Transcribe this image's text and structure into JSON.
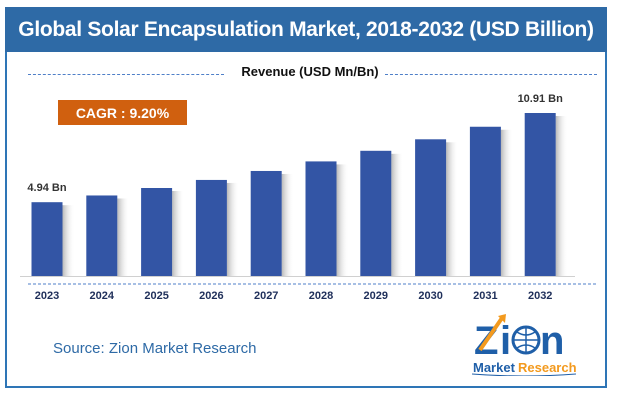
{
  "chart_data": {
    "type": "bar",
    "title": "Global Solar Encapsulation Market, 2018-2032 (USD Billion)",
    "subtitle": "Revenue (USD Mn/Bn)",
    "categories": [
      "2023",
      "2024",
      "2025",
      "2026",
      "2027",
      "2028",
      "2029",
      "2030",
      "2031",
      "2032"
    ],
    "values": [
      4.94,
      5.39,
      5.89,
      6.43,
      7.03,
      7.67,
      8.38,
      9.15,
      9.99,
      10.91
    ],
    "data_labels": {
      "0": "4.94 Bn",
      "9": "10.91 Bn"
    },
    "xlabel": "",
    "ylabel": "",
    "ylim": [
      0,
      11
    ],
    "grid": false,
    "bar_color": "#3355a5",
    "annotation": "CAGR : 9.20%"
  },
  "source": "Source: Zion Market Research",
  "logo": {
    "text_top": "Zion",
    "text_left": "Market",
    "text_right": "Research"
  },
  "colors": {
    "title_bar": "#2e6aa6",
    "cagr_box": "#d0600f",
    "frame": "#2e75b6"
  }
}
